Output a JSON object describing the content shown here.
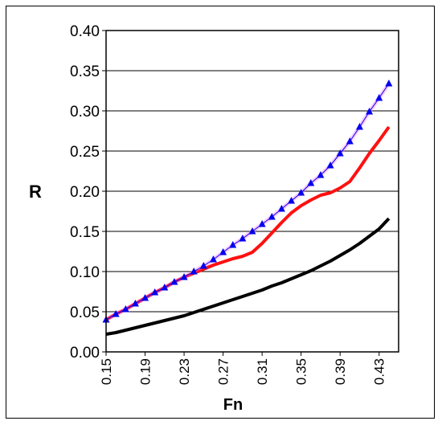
{
  "chart_data": {
    "type": "line",
    "xlabel": "Fn",
    "ylabel": "R",
    "xlim": [
      0.15,
      0.45
    ],
    "ylim": [
      0.0,
      0.4
    ],
    "y_ticks": [
      "0.00",
      "0.05",
      "0.10",
      "0.15",
      "0.20",
      "0.25",
      "0.30",
      "0.35",
      "0.40"
    ],
    "x_ticks": [
      "0.15",
      "0.19",
      "0.23",
      "0.27",
      "0.31",
      "0.35",
      "0.39",
      "0.43"
    ],
    "grid": "horizontal",
    "series": [
      {
        "color": "#0000ee",
        "marker": "triangle",
        "x": [
          0.15,
          0.16,
          0.17,
          0.18,
          0.19,
          0.2,
          0.21,
          0.22,
          0.23,
          0.24,
          0.25,
          0.26,
          0.27,
          0.28,
          0.29,
          0.3,
          0.31,
          0.32,
          0.33,
          0.34,
          0.35,
          0.36,
          0.37,
          0.38,
          0.39,
          0.4,
          0.41,
          0.42,
          0.43,
          0.44
        ],
        "y": [
          0.04,
          0.047,
          0.053,
          0.06,
          0.067,
          0.074,
          0.08,
          0.087,
          0.093,
          0.1,
          0.107,
          0.115,
          0.124,
          0.133,
          0.141,
          0.15,
          0.159,
          0.168,
          0.178,
          0.188,
          0.198,
          0.21,
          0.22,
          0.232,
          0.247,
          0.262,
          0.28,
          0.299,
          0.316,
          0.334
        ]
      },
      {
        "color": "#ff1010",
        "x": [
          0.15,
          0.16,
          0.17,
          0.18,
          0.19,
          0.2,
          0.21,
          0.22,
          0.23,
          0.24,
          0.25,
          0.26,
          0.27,
          0.28,
          0.29,
          0.3,
          0.31,
          0.32,
          0.33,
          0.34,
          0.35,
          0.36,
          0.37,
          0.38,
          0.39,
          0.4,
          0.41,
          0.42,
          0.43,
          0.44
        ],
        "y": [
          0.04,
          0.047,
          0.053,
          0.06,
          0.067,
          0.074,
          0.08,
          0.087,
          0.093,
          0.098,
          0.103,
          0.108,
          0.112,
          0.116,
          0.119,
          0.124,
          0.135,
          0.148,
          0.161,
          0.173,
          0.182,
          0.189,
          0.195,
          0.198,
          0.204,
          0.212,
          0.229,
          0.247,
          0.263,
          0.28
        ]
      },
      {
        "color": "#000000",
        "x": [
          0.15,
          0.16,
          0.17,
          0.18,
          0.19,
          0.2,
          0.21,
          0.22,
          0.23,
          0.24,
          0.25,
          0.26,
          0.27,
          0.28,
          0.29,
          0.3,
          0.31,
          0.32,
          0.33,
          0.34,
          0.35,
          0.36,
          0.37,
          0.38,
          0.39,
          0.4,
          0.41,
          0.42,
          0.43,
          0.44
        ],
        "y": [
          0.022,
          0.024,
          0.027,
          0.03,
          0.033,
          0.036,
          0.039,
          0.042,
          0.045,
          0.049,
          0.053,
          0.057,
          0.061,
          0.065,
          0.069,
          0.073,
          0.077,
          0.082,
          0.086,
          0.091,
          0.096,
          0.101,
          0.107,
          0.113,
          0.12,
          0.127,
          0.135,
          0.144,
          0.153,
          0.166
        ]
      }
    ]
  }
}
